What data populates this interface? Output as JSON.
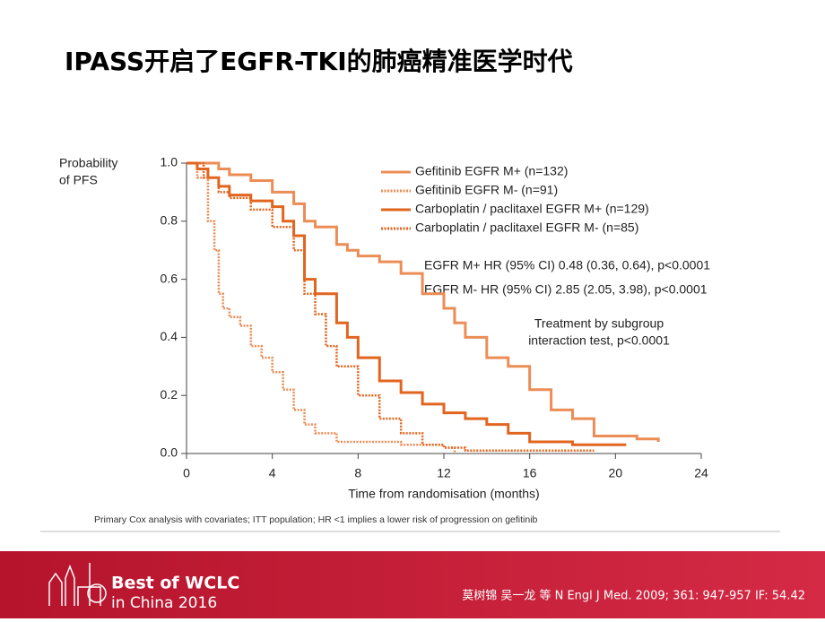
{
  "chart_data": {
    "type": "step",
    "title": "IPASS开启了EGFR-TKI的肺癌精准医学时代",
    "ylabel": [
      "Probability",
      "of PFS"
    ],
    "xlabel": "Time from randomisation (months)",
    "xlim": [
      0,
      24
    ],
    "xticks": [
      0,
      4,
      8,
      12,
      16,
      20,
      24
    ],
    "ylim": [
      0,
      1
    ],
    "yticks": [
      {
        "value": 0,
        "label": "0.0"
      },
      0.2,
      0.4,
      0.6,
      0.8,
      {
        "value": 1,
        "label": "1.0"
      }
    ],
    "series": [
      {
        "name": "Gefitinib EGFR M+ (n=132)",
        "color": "#eb8d55",
        "dashed": false,
        "x": [
          0,
          1,
          1.5,
          2,
          3,
          4,
          5,
          5.5,
          6,
          7,
          7.5,
          8,
          9,
          10,
          11,
          12,
          12.5,
          13,
          14,
          15,
          16,
          17,
          18,
          19,
          21,
          22
        ],
        "values": [
          1,
          1,
          0.98,
          0.96,
          0.94,
          0.9,
          0.86,
          0.8,
          0.78,
          0.72,
          0.7,
          0.68,
          0.66,
          0.62,
          0.55,
          0.5,
          0.45,
          0.4,
          0.33,
          0.3,
          0.22,
          0.15,
          0.12,
          0.06,
          0.05,
          0.04
        ]
      },
      {
        "name": "Gefitinib EGFR M- (n=91)",
        "color": "#eb8d55",
        "dashed": true,
        "x": [
          0,
          0.5,
          1,
          1.3,
          1.5,
          1.7,
          2,
          2.5,
          3,
          3.5,
          4,
          4.5,
          5,
          5.5,
          6,
          7,
          10,
          12,
          12.5
        ],
        "values": [
          1,
          0.95,
          0.8,
          0.7,
          0.55,
          0.5,
          0.47,
          0.44,
          0.37,
          0.33,
          0.28,
          0.22,
          0.15,
          0.1,
          0.07,
          0.04,
          0.03,
          0.02,
          0
        ]
      },
      {
        "name": "Carboplatin / paclitaxel EGFR M+ (n=129)",
        "color": "#e2651f",
        "dashed": false,
        "x": [
          0,
          0.5,
          1,
          1.5,
          2,
          3,
          4,
          4.5,
          5,
          5.5,
          6,
          7,
          7.5,
          8,
          9,
          10,
          11,
          12,
          13,
          14,
          15,
          16,
          18,
          20.5
        ],
        "values": [
          1,
          0.98,
          0.95,
          0.92,
          0.89,
          0.87,
          0.85,
          0.8,
          0.75,
          0.6,
          0.55,
          0.45,
          0.4,
          0.33,
          0.25,
          0.21,
          0.17,
          0.14,
          0.12,
          0.1,
          0.07,
          0.04,
          0.03,
          0.03
        ]
      },
      {
        "name": "Carboplatin / paclitaxel EGFR M- (n=85)",
        "color": "#e2651f",
        "dashed": true,
        "x": [
          0,
          0.8,
          1.5,
          2,
          3,
          4,
          5,
          5.5,
          6,
          6.5,
          7,
          8,
          9,
          10,
          11,
          12,
          13,
          19
        ],
        "values": [
          1,
          0.95,
          0.9,
          0.88,
          0.84,
          0.78,
          0.7,
          0.55,
          0.48,
          0.37,
          0.3,
          0.2,
          0.12,
          0.07,
          0.03,
          0.02,
          0.01,
          0.01
        ]
      }
    ],
    "annotations": [
      "EGFR M+ HR (95% CI) 0.48 (0.36, 0.64), p<0.0001",
      "EGFR M- HR (95% CI) 2.85 (2.05, 3.98), p<0.0001",
      "Treatment by subgroup",
      "interaction test, p<0.0001"
    ],
    "footnote": "Primary Cox analysis with covariates; ITT population; HR <1 implies a lower risk of progression on gefitinib",
    "footer": {
      "event": "Best of WCLC",
      "subtitle": "in China 2016",
      "citation": "莫树锦 吴一龙 等 N Engl J Med. 2009; 361: 947-957  IF: 54.42"
    }
  }
}
